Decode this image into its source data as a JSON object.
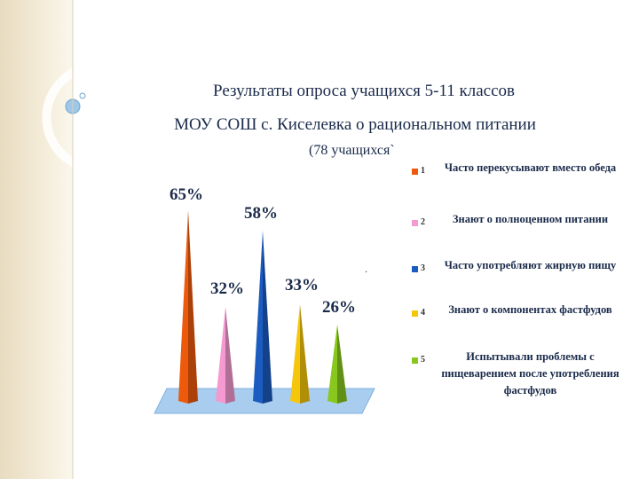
{
  "title": {
    "line1": "Результаты опроса учащихся 5-11 классов",
    "line2": "МОУ СОШ с. Киселевка о рациональном питании",
    "line3": "(78 учащихся`"
  },
  "stray_mark": ".",
  "chart_data": {
    "type": "bar",
    "categories": [
      "1",
      "2",
      "3",
      "4",
      "5"
    ],
    "values": [
      65,
      32,
      58,
      33,
      26
    ],
    "data_labels": [
      "65%",
      "32%",
      "58%",
      "33%",
      "26%"
    ],
    "colors": [
      "#ee5a0c",
      "#f59ad1",
      "#1c5cc0",
      "#f5c60a",
      "#88c81e"
    ],
    "legend": [
      {
        "num": "1",
        "text": "Часто перекусывают вместо обеда",
        "color": "#ee5a0c"
      },
      {
        "num": "2",
        "text": "Знают о полноценном питании",
        "color": "#f59ad1"
      },
      {
        "num": "3",
        "text": "Часто употребляют жирную пищу",
        "color": "#1c5cc0"
      },
      {
        "num": "4",
        "text": "Знают о компонентах фастфудов",
        "color": "#f5c60a"
      },
      {
        "num": "5",
        "text": "Испытывали проблемы с пищеварением после употребления фастфудов",
        "color": "#88c81e"
      }
    ],
    "ylim": [
      0,
      65
    ],
    "legend_position": "right",
    "grid": false
  }
}
